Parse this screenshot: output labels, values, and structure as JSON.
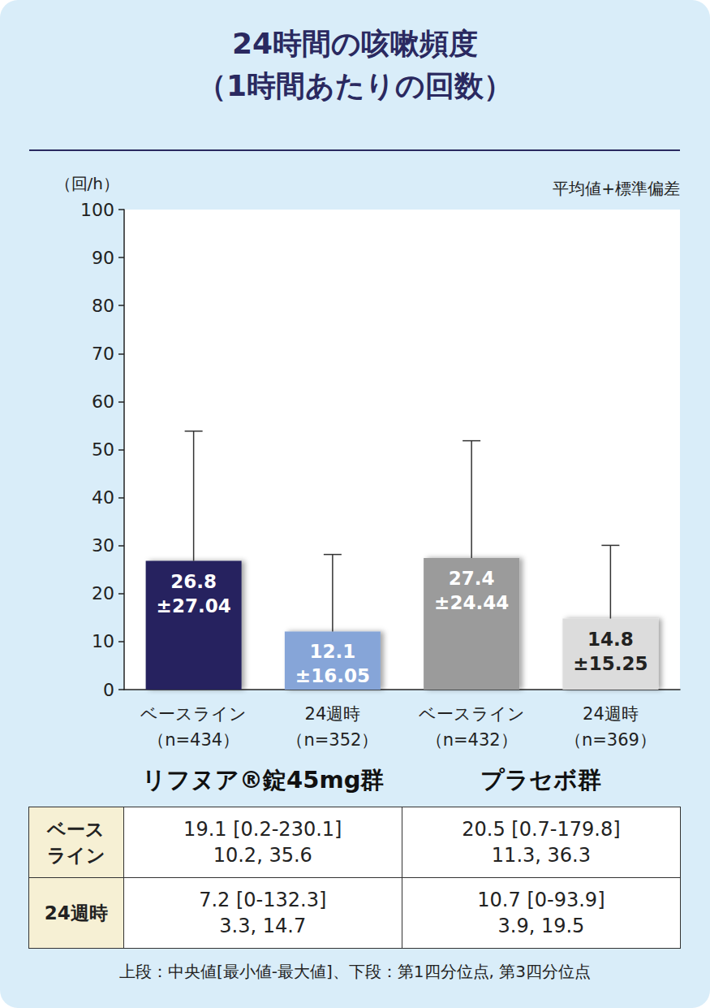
{
  "chart_data": {
    "type": "bar",
    "title": "24時間の咳嗽頻度",
    "subtitle": "（1時間あたりの回数）",
    "ylabel": "（回/h）",
    "annotations": [
      "平均値+標準偏差"
    ],
    "categories": [
      "ベースライン\n（n=434）",
      "24週時\n（n=352）",
      "ベースライン\n（n=432）",
      "24週時\n（n=369）"
    ],
    "groups": [
      {
        "label": "リフヌア®錠45mg群",
        "span": 2
      },
      {
        "label": "プラセボ群",
        "span": 2
      }
    ],
    "values": [
      26.8,
      12.1,
      27.4,
      14.8
    ],
    "errors": [
      27.04,
      16.05,
      24.44,
      15.25
    ],
    "value_labels": [
      "26.8\n±27.04",
      "12.1\n±16.05",
      "27.4\n±24.44",
      "14.8\n±15.25"
    ],
    "data_labels": true,
    "colors": [
      "#27245e",
      "#86a5d8",
      "#9b9b9b",
      "#dcdcdc"
    ],
    "ylim": [
      0,
      100
    ],
    "yticks": [
      0,
      10,
      20,
      30,
      40,
      50,
      60,
      70,
      80,
      90,
      100
    ],
    "grid": false
  },
  "table": {
    "rows": [
      [
        "ベース\nライン",
        "19.1 [0.2-230.1]\n10.2, 35.6",
        "20.5 [0.7-179.8]\n11.3, 36.3"
      ],
      [
        "24週時",
        "7.2 [0-132.3]\n3.3, 14.7",
        "10.7 [0-93.9]\n3.9, 19.5"
      ]
    ]
  },
  "footnote": "上段：中央値[最小値-最大値]、下段：第1四分位点, 第3四分位点"
}
